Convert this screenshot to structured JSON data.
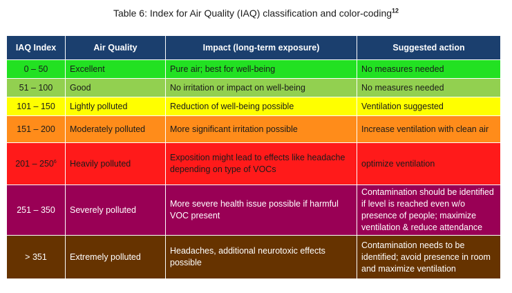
{
  "caption": {
    "text": "Table 6: Index for Air Quality (IAQ) classification and color-coding",
    "footnote": "12"
  },
  "headers": [
    "IAQ Index",
    "Air Quality",
    "Impact (long-term exposure)",
    "Suggested action"
  ],
  "rows": [
    {
      "index": "0 – 50",
      "quality": "Excellent",
      "impact": "Pure air; best for well-being",
      "action": "No measures needed",
      "color": "#22e122"
    },
    {
      "index": "51 – 100",
      "quality": "Good",
      "impact": "No irritation or impact on well-being",
      "action": "No measures needed",
      "color": "#92d050"
    },
    {
      "index": "101 – 150",
      "quality": "Lightly polluted",
      "impact": "Reduction of well-being possible",
      "action": "Ventilation suggested",
      "color": "#ffff00"
    },
    {
      "index": "151 – 200",
      "quality": "Moderately polluted",
      "impact": "More significant irritation possible",
      "action": "Increase ventilation with clean air",
      "color": "#ff8c1a"
    },
    {
      "index": "201 – 250",
      "index_footnote": "6",
      "quality": "Heavily polluted",
      "impact": "Exposition might lead to effects like headache depending on type of VOCs",
      "action": "optimize ventilation",
      "color": "#ff1a1a"
    },
    {
      "index": "251 – 350",
      "quality": "Severely polluted",
      "impact": "More severe health issue possible if harmful VOC present",
      "action": "Contamination should be identified if level is reached even w/o presence of people; maximize ventilation & reduce attendance",
      "color": "#990055"
    },
    {
      "index": "> 351",
      "quality": "Extremely polluted",
      "impact": "Headaches, additional neurotoxic effects possible",
      "action": "Contamination needs to be identified; avoid presence in room and maximize ventilation",
      "color": "#663300"
    }
  ]
}
